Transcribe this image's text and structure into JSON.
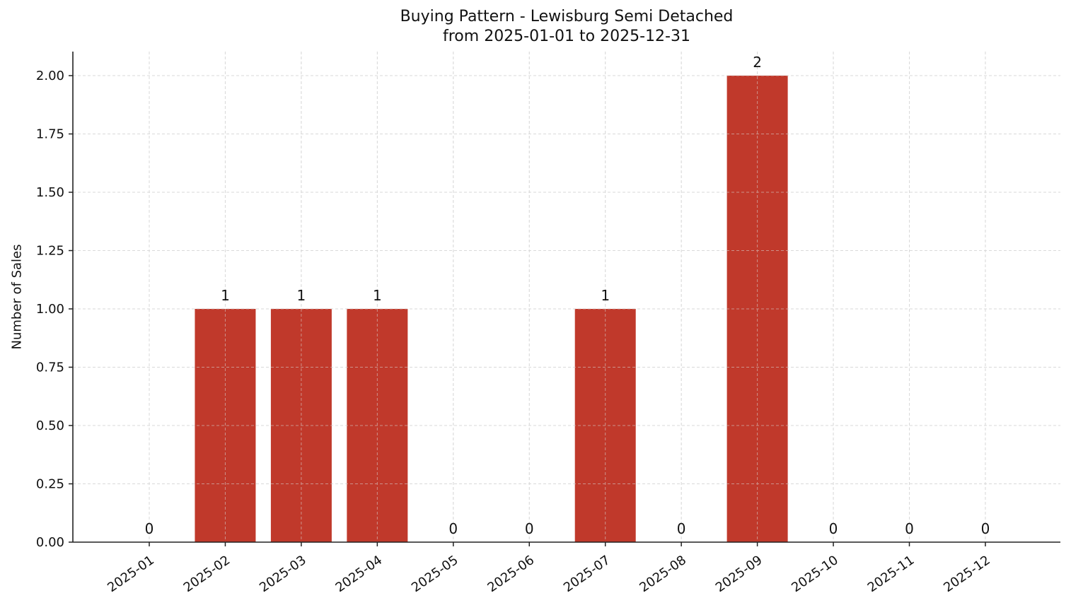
{
  "chart_data": {
    "type": "bar",
    "title": "Buying Pattern - Lewisburg Semi Detached",
    "subtitle": "from 2025-01-01 to 2025-12-31",
    "xlabel": "",
    "ylabel": "Number of Sales",
    "categories": [
      "2025-01",
      "2025-02",
      "2025-03",
      "2025-04",
      "2025-05",
      "2025-06",
      "2025-07",
      "2025-08",
      "2025-09",
      "2025-10",
      "2025-11",
      "2025-12"
    ],
    "values": [
      0,
      1,
      1,
      1,
      0,
      0,
      1,
      0,
      2,
      0,
      0,
      0
    ],
    "data_labels": [
      "0",
      "1",
      "1",
      "1",
      "0",
      "0",
      "1",
      "0",
      "2",
      "0",
      "0",
      "0"
    ],
    "ylim": [
      0,
      2.1
    ],
    "yticks": [
      0,
      0.25,
      0.5,
      0.75,
      1.0,
      1.25,
      1.5,
      1.75,
      2.0
    ],
    "ytick_labels": [
      "0.00",
      "0.25",
      "0.50",
      "0.75",
      "1.00",
      "1.25",
      "1.50",
      "1.75",
      "2.00"
    ],
    "grid": true,
    "grid_style": "dashed",
    "legend": "none",
    "bar_color": "#c0392b",
    "xtick_rotation": 35
  },
  "colors": {
    "bar": "#c0392b",
    "axis": "#222222",
    "grid": "#d9d9d9",
    "text": "#111111"
  }
}
